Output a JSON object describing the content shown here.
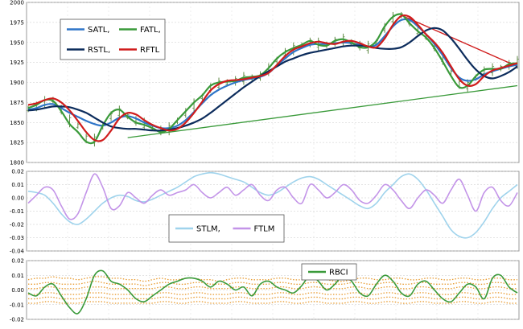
{
  "chart_data": [
    {
      "type": "line",
      "ylim": [
        1800,
        2000
      ],
      "yticks": [
        "2000",
        "1975",
        "1950",
        "1925",
        "1900",
        "1875",
        "1850",
        "1825",
        "1800"
      ],
      "grid": true,
      "legend_position": "top-left",
      "x_points": 60,
      "price_bars": [
        1867,
        1870,
        1875,
        1878,
        1866,
        1852,
        1846,
        1830,
        1828,
        1845,
        1858,
        1863,
        1858,
        1852,
        1848,
        1844,
        1840,
        1842,
        1852,
        1862,
        1872,
        1882,
        1893,
        1898,
        1900,
        1902,
        1905,
        1906,
        1908,
        1916,
        1928,
        1937,
        1942,
        1946,
        1950,
        1948,
        1947,
        1951,
        1953,
        1950,
        1946,
        1944,
        1950,
        1968,
        1980,
        1984,
        1976,
        1965,
        1957,
        1945,
        1930,
        1912,
        1898,
        1896,
        1906,
        1914,
        1916,
        1918,
        1922,
        1925
      ],
      "series": [
        {
          "name": "SATL",
          "color": "#2e75c8",
          "values": [
            1866,
            1868,
            1872,
            1873,
            1868,
            1862,
            1857,
            1852,
            1848,
            1846,
            1850,
            1856,
            1858,
            1855,
            1850,
            1846,
            1843,
            1843,
            1846,
            1853,
            1863,
            1874,
            1884,
            1891,
            1896,
            1900,
            1903,
            1905,
            1907,
            1912,
            1921,
            1930,
            1938,
            1943,
            1947,
            1948,
            1948,
            1949,
            1950,
            1949,
            1947,
            1945,
            1947,
            1958,
            1970,
            1978,
            1978,
            1970,
            1960,
            1948,
            1934,
            1918,
            1906,
            1902,
            1904,
            1910,
            1914,
            1917,
            1920,
            1922
          ]
        },
        {
          "name": "FATL",
          "color": "#3a9a3a",
          "values": [
            1868,
            1872,
            1878,
            1877,
            1864,
            1848,
            1838,
            1826,
            1826,
            1846,
            1862,
            1866,
            1857,
            1850,
            1847,
            1843,
            1838,
            1842,
            1853,
            1864,
            1875,
            1884,
            1896,
            1900,
            1901,
            1902,
            1906,
            1907,
            1909,
            1918,
            1930,
            1938,
            1943,
            1947,
            1952,
            1947,
            1946,
            1952,
            1954,
            1950,
            1944,
            1944,
            1952,
            1970,
            1982,
            1985,
            1974,
            1964,
            1956,
            1943,
            1926,
            1908,
            1894,
            1896,
            1908,
            1916,
            1917,
            1917,
            1923,
            1924
          ]
        },
        {
          "name": "RSTL",
          "color": "#0c2c5c",
          "values": [
            1865,
            1866,
            1868,
            1870,
            1870,
            1869,
            1866,
            1862,
            1856,
            1850,
            1845,
            1843,
            1842,
            1842,
            1841,
            1840,
            1840,
            1841,
            1843,
            1846,
            1850,
            1855,
            1862,
            1870,
            1878,
            1886,
            1894,
            1901,
            1908,
            1914,
            1920,
            1926,
            1930,
            1934,
            1937,
            1939,
            1941,
            1943,
            1945,
            1946,
            1946,
            1945,
            1943,
            1942,
            1942,
            1944,
            1950,
            1958,
            1965,
            1968,
            1965,
            1955,
            1942,
            1928,
            1916,
            1908,
            1905,
            1908,
            1913,
            1920
          ]
        },
        {
          "name": "RFTL",
          "color": "#d01c1c",
          "values": [
            1872,
            1874,
            1878,
            1880,
            1875,
            1865,
            1852,
            1838,
            1828,
            1828,
            1840,
            1855,
            1862,
            1860,
            1853,
            1847,
            1843,
            1840,
            1842,
            1850,
            1862,
            1876,
            1890,
            1898,
            1902,
            1903,
            1904,
            1906,
            1908,
            1912,
            1922,
            1933,
            1941,
            1945,
            1949,
            1951,
            1949,
            1948,
            1951,
            1952,
            1949,
            1945,
            1944,
            1955,
            1972,
            1983,
            1982,
            1972,
            1960,
            1950,
            1937,
            1920,
            1904,
            1896,
            1898,
            1908,
            1915,
            1918,
            1921,
            1924
          ]
        }
      ],
      "trendlines": [
        {
          "color": "#3a9a3a",
          "from": [
            12,
            1831
          ],
          "to": [
            59,
            1896
          ]
        },
        {
          "color": "#d01c1c",
          "from": [
            45,
            1984
          ],
          "to": [
            59,
            1920
          ]
        }
      ],
      "legend": [
        {
          "label": "SATL,",
          "color": "#2e75c8"
        },
        {
          "label": "FATL,",
          "color": "#3a9a3a"
        },
        {
          "label": "RSTL,",
          "color": "#0c2c5c"
        },
        {
          "label": "RFTL",
          "color": "#d01c1c"
        }
      ]
    },
    {
      "type": "line",
      "ylim": [
        -0.04,
        0.02
      ],
      "yticks": [
        "0.02",
        "0.01",
        "0.00",
        "-0.01",
        "-0.02",
        "-0.03",
        "-0.04"
      ],
      "grid": true,
      "legend_position": "bottom-center",
      "series": [
        {
          "name": "STLM",
          "color": "#9fd3ec",
          "values": [
            0.005,
            0.004,
            0.002,
            -0.004,
            -0.012,
            -0.018,
            -0.02,
            -0.016,
            -0.01,
            -0.004,
            0.0,
            0.002,
            0.001,
            -0.002,
            -0.003,
            -0.001,
            0.002,
            0.005,
            0.008,
            0.012,
            0.016,
            0.018,
            0.019,
            0.018,
            0.016,
            0.014,
            0.012,
            0.008,
            0.004,
            0.002,
            0.004,
            0.008,
            0.012,
            0.015,
            0.016,
            0.014,
            0.01,
            0.006,
            0.002,
            -0.002,
            -0.006,
            -0.008,
            -0.004,
            0.004,
            0.01,
            0.016,
            0.018,
            0.014,
            0.006,
            -0.004,
            -0.014,
            -0.024,
            -0.029,
            -0.03,
            -0.026,
            -0.018,
            -0.008,
            0.0,
            0.005,
            0.01
          ]
        },
        {
          "name": "FTLM",
          "color": "#c394e8",
          "values": [
            -0.004,
            0.002,
            0.008,
            0.006,
            -0.006,
            -0.016,
            -0.012,
            0.004,
            0.018,
            0.008,
            -0.008,
            -0.006,
            0.004,
            0.0,
            -0.004,
            0.002,
            0.006,
            0.002,
            0.004,
            0.006,
            0.01,
            0.004,
            0.0,
            0.004,
            0.008,
            0.002,
            0.006,
            0.01,
            0.002,
            -0.002,
            0.006,
            0.008,
            0.0,
            -0.004,
            0.01,
            0.006,
            0.0,
            0.004,
            0.01,
            0.006,
            -0.002,
            -0.004,
            0.002,
            0.01,
            0.006,
            -0.002,
            -0.008,
            0.0,
            0.006,
            0.002,
            -0.004,
            0.006,
            0.014,
            0.002,
            -0.01,
            0.004,
            0.008,
            -0.002,
            -0.006,
            0.004
          ]
        }
      ],
      "legend": [
        {
          "label": "STLM,",
          "color": "#9fd3ec"
        },
        {
          "label": "FTLM",
          "color": "#c394e8"
        }
      ]
    },
    {
      "type": "line",
      "ylim": [
        -0.02,
        0.02
      ],
      "yticks": [
        "0.02",
        "0.01",
        "0.00",
        "-0.01",
        "-0.02"
      ],
      "grid": true,
      "legend_position": "top-right",
      "series": [
        {
          "name": "RBCI",
          "color": "#3a9a3a",
          "values": [
            -0.002,
            -0.004,
            0.002,
            0.004,
            -0.004,
            -0.012,
            -0.016,
            -0.006,
            0.01,
            0.013,
            0.006,
            0.004,
            0.0,
            -0.006,
            -0.008,
            -0.004,
            0.0,
            0.004,
            0.006,
            0.008,
            0.008,
            0.006,
            0.002,
            0.006,
            0.004,
            0.0,
            0.002,
            -0.004,
            0.004,
            0.006,
            0.002,
            0.0,
            -0.002,
            0.003,
            0.01,
            0.006,
            0.0,
            0.004,
            0.01,
            0.006,
            -0.002,
            -0.004,
            0.004,
            0.01,
            0.006,
            -0.002,
            -0.004,
            0.004,
            0.006,
            0.0,
            -0.006,
            -0.008,
            -0.002,
            0.004,
            0.002,
            -0.006,
            0.008,
            0.01,
            0.002,
            -0.002
          ]
        }
      ],
      "band_color": "#e89a2e",
      "bands": [
        [
          0.007,
          0.008,
          0.008,
          0.009,
          0.008,
          0.008,
          0.007,
          0.008,
          0.009,
          0.009,
          0.008,
          0.008,
          0.007,
          0.007,
          0.006,
          0.007,
          0.008,
          0.007,
          0.007,
          0.008,
          0.008,
          0.007,
          0.007,
          0.006,
          0.007,
          0.008,
          0.008,
          0.007,
          0.007,
          0.007,
          0.008,
          0.008,
          0.007,
          0.007,
          0.008,
          0.008,
          0.007,
          0.006,
          0.006,
          0.007,
          0.008,
          0.008,
          0.007,
          0.007,
          0.008,
          0.008,
          0.007,
          0.007,
          0.008,
          0.008,
          0.007,
          0.007,
          0.008,
          0.008,
          0.007,
          0.007,
          0.008,
          0.008,
          0.007,
          0.007
        ],
        [
          0.004,
          0.004,
          0.005,
          0.005,
          0.004,
          0.004,
          0.004,
          0.005,
          0.006,
          0.005,
          0.004,
          0.004,
          0.004,
          0.004,
          0.003,
          0.004,
          0.005,
          0.005,
          0.004,
          0.004,
          0.005,
          0.005,
          0.004,
          0.004,
          0.004,
          0.005,
          0.005,
          0.004,
          0.004,
          0.004,
          0.005,
          0.005,
          0.004,
          0.004,
          0.005,
          0.005,
          0.004,
          0.004,
          0.004,
          0.005,
          0.005,
          0.004,
          0.004,
          0.005,
          0.005,
          0.004,
          0.004,
          0.005,
          0.005,
          0.004,
          0.004,
          0.004,
          0.005,
          0.005,
          0.004,
          0.004,
          0.005,
          0.005,
          0.004,
          0.004
        ],
        [
          0.001,
          0.001,
          0.002,
          0.002,
          0.001,
          0.001,
          0.001,
          0.002,
          0.002,
          0.002,
          0.001,
          0.001,
          0.001,
          0.001,
          0.001,
          0.001,
          0.002,
          0.002,
          0.001,
          0.001,
          0.002,
          0.002,
          0.001,
          0.001,
          0.001,
          0.002,
          0.002,
          0.001,
          0.001,
          0.001,
          0.002,
          0.002,
          0.001,
          0.001,
          0.002,
          0.002,
          0.001,
          0.001,
          0.001,
          0.002,
          0.002,
          0.001,
          0.001,
          0.002,
          0.002,
          0.001,
          0.001,
          0.002,
          0.002,
          0.001,
          0.001,
          0.001,
          0.002,
          0.002,
          0.001,
          0.001,
          0.002,
          0.002,
          0.001,
          0.001
        ],
        [
          -0.003,
          -0.003,
          -0.002,
          -0.002,
          -0.003,
          -0.003,
          -0.003,
          -0.002,
          -0.002,
          -0.002,
          -0.003,
          -0.003,
          -0.003,
          -0.003,
          -0.003,
          -0.003,
          -0.002,
          -0.002,
          -0.003,
          -0.003,
          -0.002,
          -0.002,
          -0.003,
          -0.003,
          -0.003,
          -0.002,
          -0.002,
          -0.003,
          -0.003,
          -0.003,
          -0.002,
          -0.002,
          -0.003,
          -0.003,
          -0.002,
          -0.002,
          -0.003,
          -0.003,
          -0.003,
          -0.002,
          -0.002,
          -0.003,
          -0.003,
          -0.002,
          -0.002,
          -0.003,
          -0.003,
          -0.002,
          -0.002,
          -0.003,
          -0.003,
          -0.003,
          -0.002,
          -0.002,
          -0.003,
          -0.003,
          -0.002,
          -0.002,
          -0.003,
          -0.003
        ],
        [
          -0.006,
          -0.006,
          -0.005,
          -0.005,
          -0.006,
          -0.006,
          -0.006,
          -0.005,
          -0.005,
          -0.005,
          -0.006,
          -0.006,
          -0.006,
          -0.006,
          -0.006,
          -0.006,
          -0.005,
          -0.005,
          -0.006,
          -0.006,
          -0.005,
          -0.005,
          -0.006,
          -0.006,
          -0.006,
          -0.005,
          -0.005,
          -0.006,
          -0.006,
          -0.006,
          -0.005,
          -0.005,
          -0.006,
          -0.006,
          -0.005,
          -0.005,
          -0.006,
          -0.006,
          -0.006,
          -0.005,
          -0.005,
          -0.006,
          -0.006,
          -0.005,
          -0.005,
          -0.006,
          -0.006,
          -0.005,
          -0.005,
          -0.006,
          -0.006,
          -0.006,
          -0.005,
          -0.005,
          -0.006,
          -0.006,
          -0.005,
          -0.005,
          -0.006,
          -0.006
        ],
        [
          -0.009,
          -0.009,
          -0.008,
          -0.008,
          -0.009,
          -0.009,
          -0.009,
          -0.008,
          -0.008,
          -0.008,
          -0.009,
          -0.009,
          -0.009,
          -0.009,
          -0.009,
          -0.009,
          -0.008,
          -0.008,
          -0.009,
          -0.009,
          -0.008,
          -0.008,
          -0.009,
          -0.009,
          -0.009,
          -0.008,
          -0.008,
          -0.009,
          -0.009,
          -0.009,
          -0.008,
          -0.008,
          -0.009,
          -0.009,
          -0.008,
          -0.008,
          -0.009,
          -0.009,
          -0.009,
          -0.008,
          -0.008,
          -0.009,
          -0.009,
          -0.008,
          -0.008,
          -0.009,
          -0.009,
          -0.008,
          -0.008,
          -0.009,
          -0.009,
          -0.009,
          -0.008,
          -0.008,
          -0.009,
          -0.009,
          -0.008,
          -0.008,
          -0.009,
          -0.009
        ]
      ],
      "legend": [
        {
          "label": "RBCI",
          "color": "#3a9a3a"
        }
      ]
    }
  ]
}
